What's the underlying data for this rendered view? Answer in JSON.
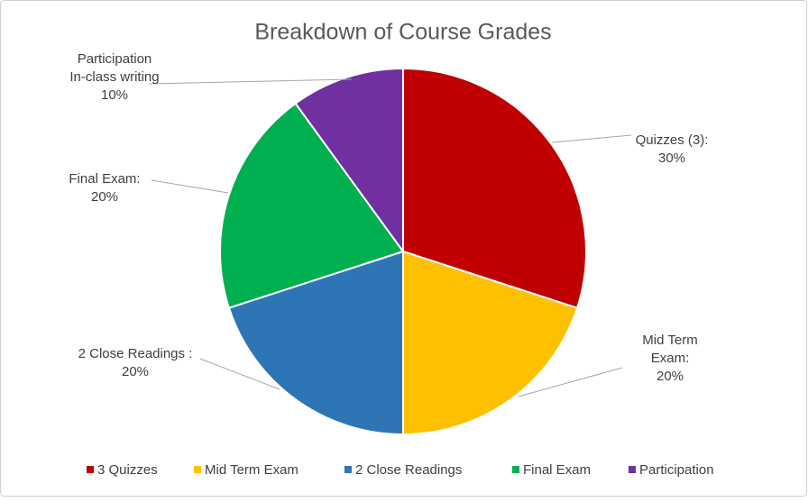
{
  "chart_data": {
    "type": "pie",
    "title": "Breakdown of Course Grades",
    "categories": [
      "3 Quizzes",
      "Mid Term Exam",
      "2 Close Readings",
      "Final Exam",
      "Participation"
    ],
    "values": [
      30,
      20,
      20,
      20,
      10
    ],
    "value_labels": [
      "Quizzes (3):\n30%",
      "Mid Term\nExam:\n20%",
      "2 Close Readings :\n20%",
      "Final Exam:\n20%",
      "Participation\nIn-class writing\n10%"
    ],
    "colors": [
      "#c00000",
      "#ffc000",
      "#2e75b6",
      "#00b050",
      "#7030a0"
    ],
    "legend": "bottom"
  }
}
